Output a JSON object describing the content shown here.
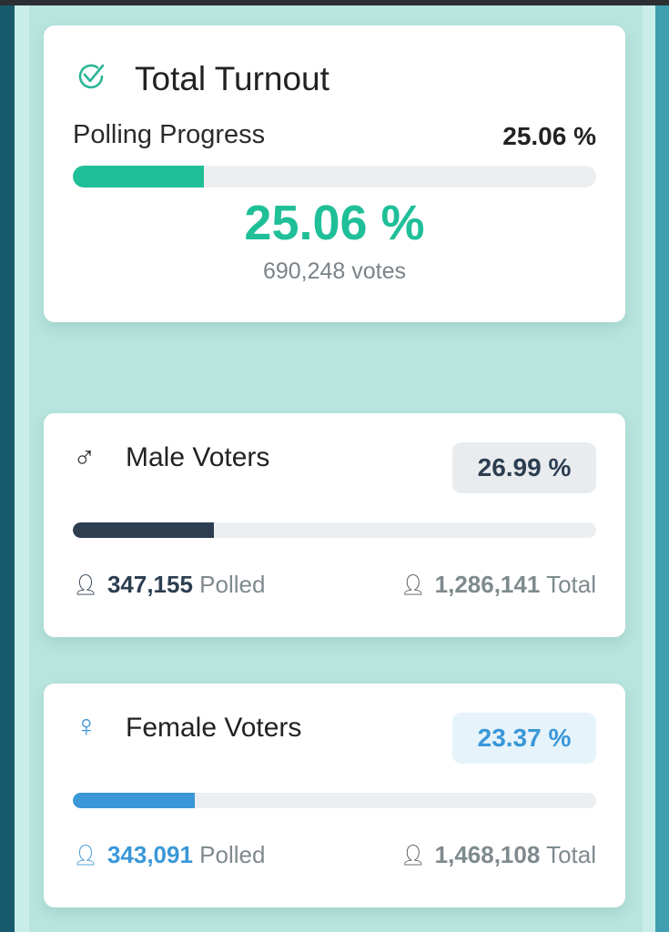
{
  "total": {
    "title": "Total Turnout",
    "progress_label": "Polling Progress",
    "percent_text": "25.06 %",
    "percent": 25.06,
    "big_percent": "25.06 %",
    "votes": "690,248 votes",
    "color": "#1fbf98"
  },
  "male": {
    "title": "Male Voters",
    "percent_text": "26.99 %",
    "percent": 26.99,
    "polled": "347,155",
    "polled_label": "Polled",
    "total": "1,286,141",
    "total_label": "Total",
    "color": "#2c3e50"
  },
  "female": {
    "title": "Female Voters",
    "percent_text": "23.37 %",
    "percent": 23.37,
    "polled": "343,091",
    "polled_label": "Polled",
    "total": "1,468,108",
    "total_label": "Total",
    "color": "#3a97d8"
  }
}
